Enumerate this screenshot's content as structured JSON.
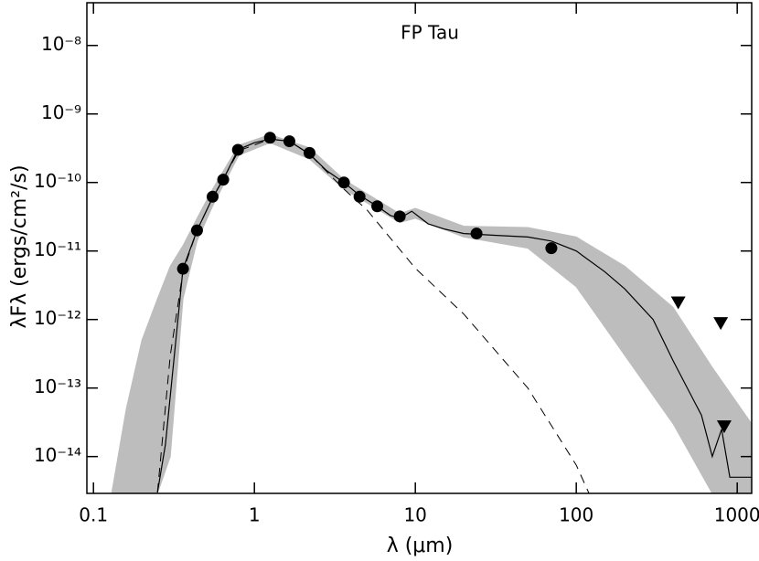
{
  "chart_data": {
    "type": "scatter",
    "title": "FP Tau",
    "x_label": "λ (μm)",
    "y_label": "λFλ (ergs/cm²/s)",
    "log_x": true,
    "log_y": true,
    "xlim": [
      0.091,
      1230
    ],
    "ylim": [
      2.9e-15,
      4.2e-08
    ],
    "xticks": [
      0.1,
      1,
      10,
      100,
      1000
    ],
    "yticks": [
      {
        "value": 1e-14,
        "label": "10⁻¹⁴"
      },
      {
        "value": 1e-13,
        "label": "10⁻¹³"
      },
      {
        "value": 1e-12,
        "label": "10⁻¹²"
      },
      {
        "value": 1e-11,
        "label": "10⁻¹¹"
      },
      {
        "value": 1e-10,
        "label": "10⁻¹⁰"
      },
      {
        "value": 1e-09,
        "label": "10⁻⁹"
      },
      {
        "value": 1e-08,
        "label": "10⁻⁸"
      }
    ],
    "band": {
      "color": "#bdbdbd",
      "x": [
        0.13,
        0.16,
        0.2,
        0.25,
        0.3,
        0.36,
        0.44,
        0.55,
        0.8,
        1.25,
        2.2,
        3.6,
        8,
        10,
        20,
        50,
        100,
        200,
        400,
        700,
        1230
      ],
      "low": [
        2.9e-15,
        2.9e-15,
        2.9e-15,
        2.9e-15,
        1e-14,
        2e-12,
        1.4e-11,
        4.5e-11,
        2.5e-10,
        3.8e-10,
        2.2e-10,
        8e-11,
        2.6e-11,
        3e-11,
        1.6e-11,
        1.1e-11,
        3e-12,
        3e-13,
        3e-14,
        2.9e-15,
        2.9e-15
      ],
      "high": [
        3e-15,
        5e-14,
        5e-13,
        2e-12,
        6e-12,
        1.2e-11,
        3e-11,
        8e-11,
        3.5e-10,
        5e-10,
        3.2e-10,
        1.1e-10,
        3.5e-11,
        4.2e-11,
        2.3e-11,
        2.2e-11,
        1.6e-11,
        6e-12,
        1.5e-12,
        2e-13,
        3e-14
      ]
    },
    "model": {
      "color": "#000000",
      "x": [
        0.25,
        0.28,
        0.36,
        0.44,
        0.55,
        0.64,
        0.79,
        1.0,
        1.25,
        1.65,
        2.2,
        2.8,
        3.6,
        4.5,
        5.8,
        7,
        8,
        9.5,
        12,
        15,
        20,
        30,
        50,
        70,
        100,
        150,
        200,
        300,
        400,
        600,
        700,
        800,
        900,
        1230
      ],
      "values": [
        3e-15,
        1.5e-14,
        5.5e-12,
        2e-11,
        6e-11,
        1.1e-10,
        3e-10,
        3.8e-10,
        4.3e-10,
        4e-10,
        2.6e-10,
        1.5e-10,
        1e-10,
        6.5e-11,
        4.5e-11,
        3.3e-11,
        3e-11,
        3.8e-11,
        2.5e-11,
        2.1e-11,
        1.8e-11,
        1.7e-11,
        1.6e-11,
        1.4e-11,
        1e-11,
        5e-12,
        2.8e-12,
        1e-12,
        2.5e-13,
        4e-14,
        1e-14,
        2.5e-14,
        5e-15,
        5e-15
      ]
    },
    "photosphere": {
      "color": "#000000",
      "x": [
        0.25,
        0.3,
        0.36,
        0.44,
        0.55,
        0.8,
        1.25,
        1.65,
        2.2,
        3.6,
        5,
        10,
        20,
        50,
        100,
        120
      ],
      "values": [
        3e-15,
        3e-13,
        5e-12,
        2e-11,
        6e-11,
        2.9e-10,
        4.3e-10,
        4e-10,
        2.6e-10,
        8e-11,
        4e-11,
        5.6e-12,
        1.2e-12,
        1e-13,
        7.5e-15,
        2.9e-15
      ]
    },
    "points": {
      "color": "#000000",
      "x": [
        0.36,
        0.44,
        0.55,
        0.64,
        0.79,
        1.25,
        1.65,
        2.2,
        3.6,
        4.5,
        5.8,
        8.0,
        24,
        70
      ],
      "values": [
        5.5e-12,
        2e-11,
        6.2e-11,
        1.1e-10,
        3e-10,
        4.5e-10,
        4e-10,
        2.7e-10,
        1e-10,
        6.2e-11,
        4.5e-11,
        3.2e-11,
        1.8e-11,
        1.1e-11
      ]
    },
    "upper_limits": {
      "color": "#000000",
      "x": [
        430,
        790,
        830
      ],
      "values": [
        1.8e-12,
        9e-13,
        2.8e-14
      ]
    }
  }
}
